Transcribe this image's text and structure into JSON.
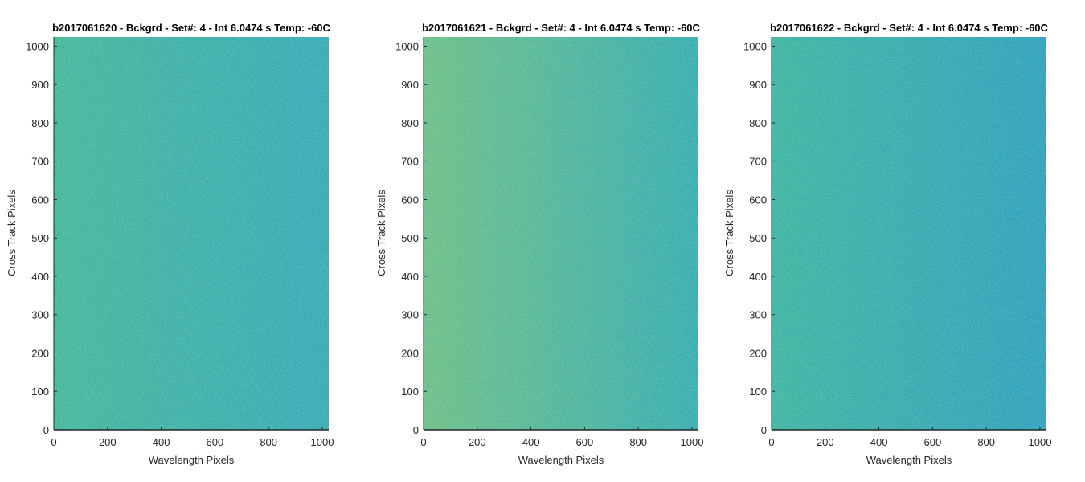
{
  "chart_data": [
    {
      "type": "heatmap",
      "title": "b2017061620 - Bckgrd - Set#: 4 - Int 6.0474 s Temp: -60C",
      "xlabel": "Wavelength Pixels",
      "ylabel": "Cross Track Pixels",
      "xlim": [
        0,
        1024
      ],
      "ylim": [
        0,
        1024
      ],
      "xticks": [
        "0",
        "200",
        "400",
        "600",
        "800",
        "1000"
      ],
      "yticks": [
        "0",
        "100",
        "200",
        "300",
        "400",
        "500",
        "600",
        "700",
        "800",
        "900",
        "1000"
      ],
      "xtick_values": [
        0,
        200,
        400,
        600,
        800,
        1000
      ],
      "ytick_values": [
        0,
        100,
        200,
        300,
        400,
        500,
        600,
        700,
        800,
        900,
        1000
      ],
      "grid": false,
      "colors": {
        "left": "#2fb0a0",
        "right": "#1da2c0"
      }
    },
    {
      "type": "heatmap",
      "title": "b2017061621 - Bckgrd - Set#: 4 - Int 6.0474 s Temp: -60C",
      "xlabel": "Wavelength Pixels",
      "ylabel": "Cross Track Pixels",
      "xlim": [
        0,
        1024
      ],
      "ylim": [
        0,
        1024
      ],
      "xticks": [
        "0",
        "200",
        "400",
        "600",
        "800",
        "1000"
      ],
      "yticks": [
        "0",
        "100",
        "200",
        "300",
        "400",
        "500",
        "600",
        "700",
        "800",
        "900",
        "1000"
      ],
      "xtick_values": [
        0,
        200,
        400,
        600,
        800,
        1000
      ],
      "ytick_values": [
        0,
        100,
        200,
        300,
        400,
        500,
        600,
        700,
        800,
        900,
        1000
      ],
      "grid": false,
      "colors": {
        "left": "#5cb98a",
        "right": "#1ea6b8"
      }
    },
    {
      "type": "heatmap",
      "title": "b2017061622 - Bckgrd - Set#: 4 - Int 6.0474 s Temp: -60C",
      "xlabel": "Wavelength Pixels",
      "ylabel": "Cross Track Pixels",
      "xlim": [
        0,
        1024
      ],
      "ylim": [
        0,
        1024
      ],
      "xticks": [
        "0",
        "200",
        "400",
        "600",
        "800",
        "1000"
      ],
      "yticks": [
        "0",
        "100",
        "200",
        "300",
        "400",
        "500",
        "600",
        "700",
        "800",
        "900",
        "1000"
      ],
      "xtick_values": [
        0,
        200,
        400,
        600,
        800,
        1000
      ],
      "ytick_values": [
        0,
        100,
        200,
        300,
        400,
        500,
        600,
        700,
        800,
        900,
        1000
      ],
      "grid": false,
      "colors": {
        "left": "#27aea8",
        "right": "#1597c6"
      }
    }
  ]
}
